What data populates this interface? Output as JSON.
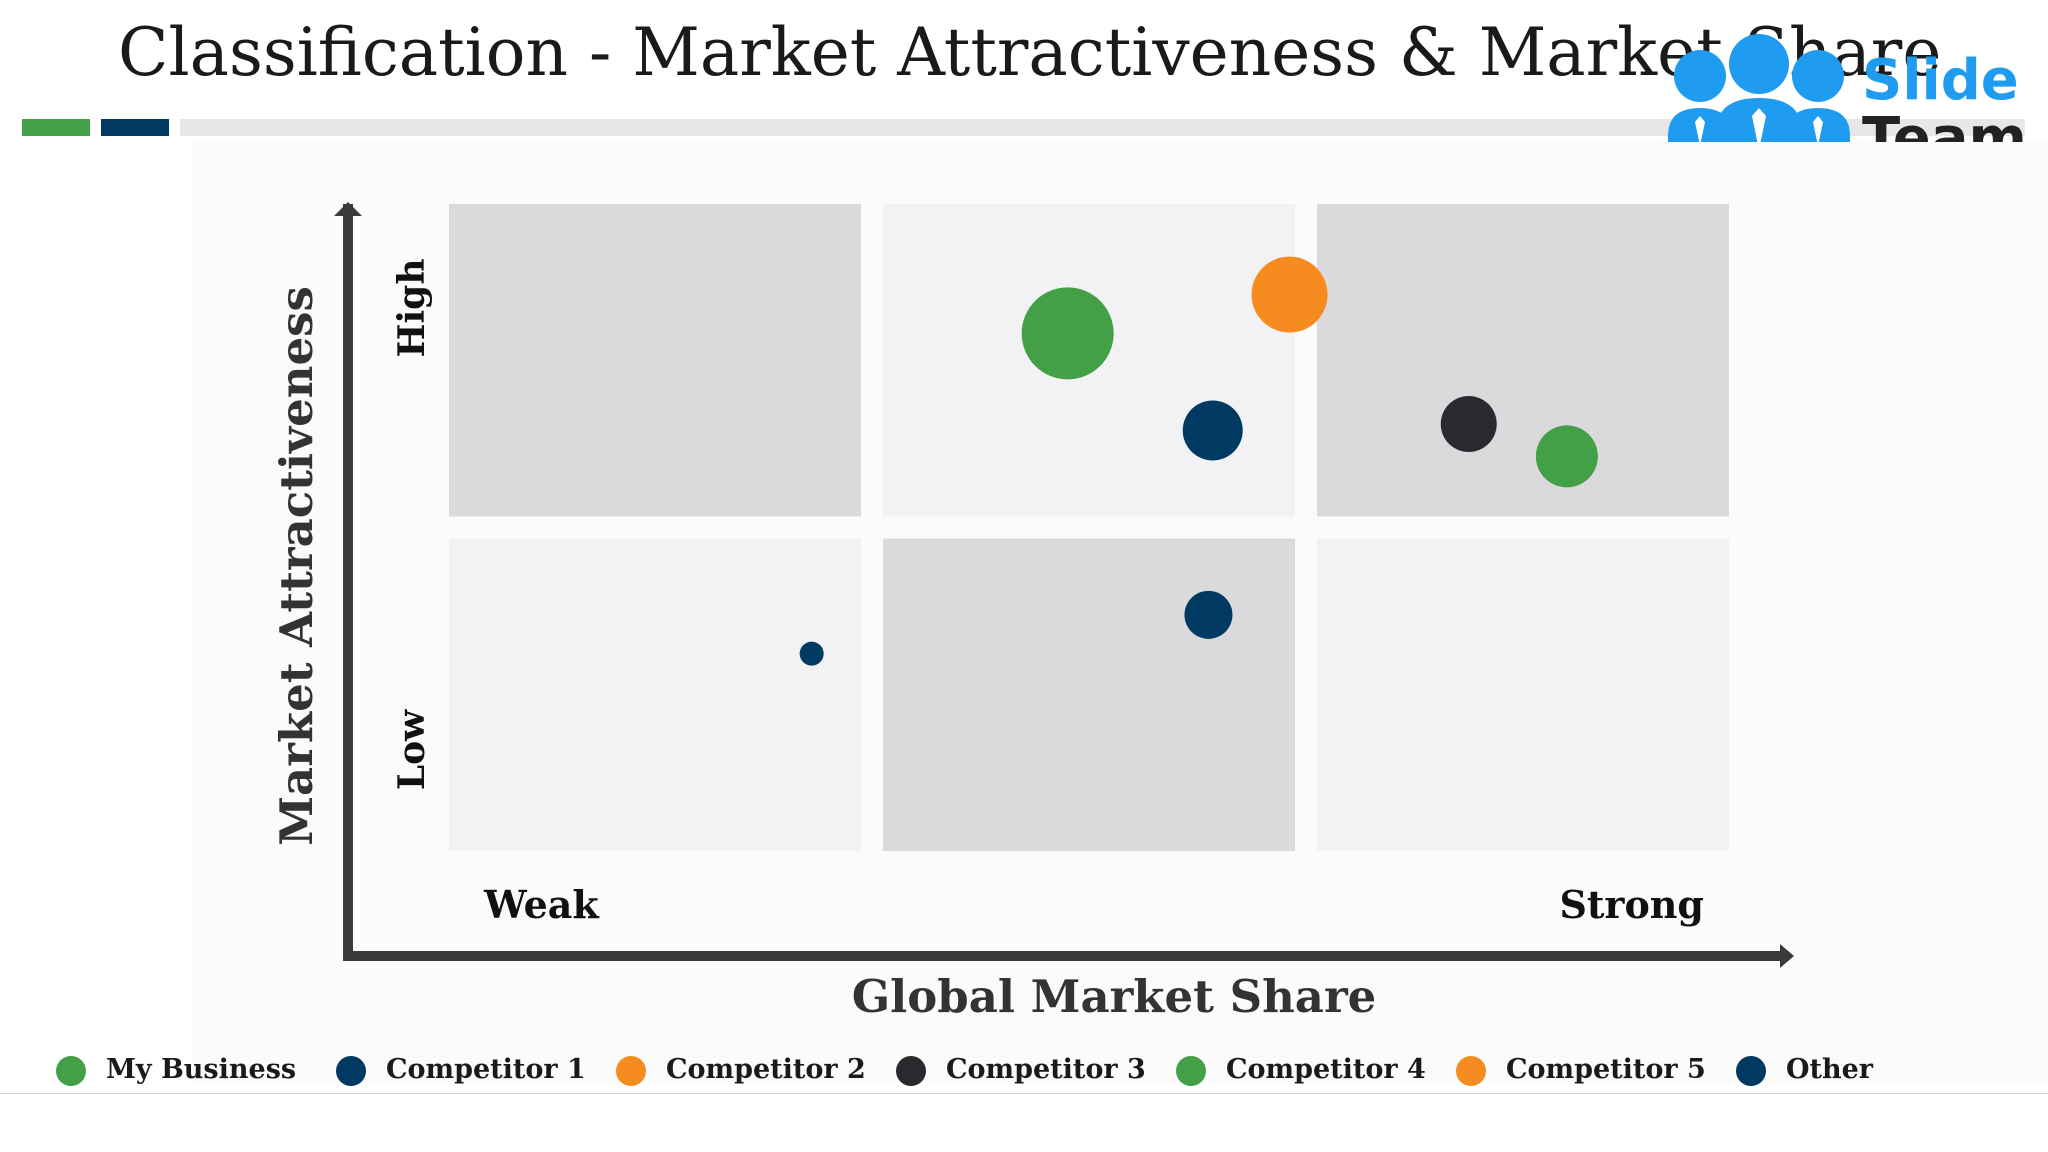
{
  "page": {
    "title": "Classification - Market Attractiveness & Market Share"
  },
  "logo": {
    "line1": "Slide",
    "line2": "Team",
    "icon": "people-group-icon"
  },
  "colors": {
    "green": "#43a047",
    "blue": "#003a63",
    "orange": "#f68b1f",
    "black": "#2a2a2e",
    "cell_dark": "#dadadd",
    "cell_light": "#f2f2f4"
  },
  "chart_data": {
    "type": "scatter",
    "title": "",
    "xlabel": "Global Market Share",
    "ylabel": "Market Attractiveness",
    "x_levels": [
      "Weak",
      "Strong"
    ],
    "y_levels": [
      "Low",
      "High"
    ],
    "xlim": [
      0,
      3
    ],
    "ylim": [
      0,
      2
    ],
    "grid": {
      "cols": 3,
      "rows": 2,
      "shading": [
        [
          "light",
          "dark",
          "light"
        ],
        [
          "dark",
          "light",
          "dark"
        ]
      ]
    },
    "legend_position": "bottom",
    "series": [
      {
        "name": "My Business",
        "color": "#43a047"
      },
      {
        "name": "Competitor 1",
        "color": "#003a63"
      },
      {
        "name": "Competitor 2",
        "color": "#f68b1f"
      },
      {
        "name": "Competitor 3",
        "color": "#2a2a2e"
      },
      {
        "name": "Competitor 4",
        "color": "#43a047"
      },
      {
        "name": "Competitor 5",
        "color": "#f68b1f"
      },
      {
        "name": "Other",
        "color": "#003a63"
      }
    ],
    "points": [
      {
        "x": 1.45,
        "y": 1.6,
        "size": 46,
        "color": "#43a047"
      },
      {
        "x": 1.97,
        "y": 1.72,
        "size": 38,
        "color": "#f68b1f"
      },
      {
        "x": 1.79,
        "y": 1.3,
        "size": 30,
        "color": "#003a63"
      },
      {
        "x": 2.39,
        "y": 1.32,
        "size": 28,
        "color": "#2a2a2e"
      },
      {
        "x": 2.62,
        "y": 1.22,
        "size": 31,
        "color": "#43a047"
      },
      {
        "x": 1.78,
        "y": 0.73,
        "size": 24,
        "color": "#003a63"
      },
      {
        "x": 0.85,
        "y": 0.61,
        "size": 12,
        "color": "#003a63"
      }
    ]
  }
}
